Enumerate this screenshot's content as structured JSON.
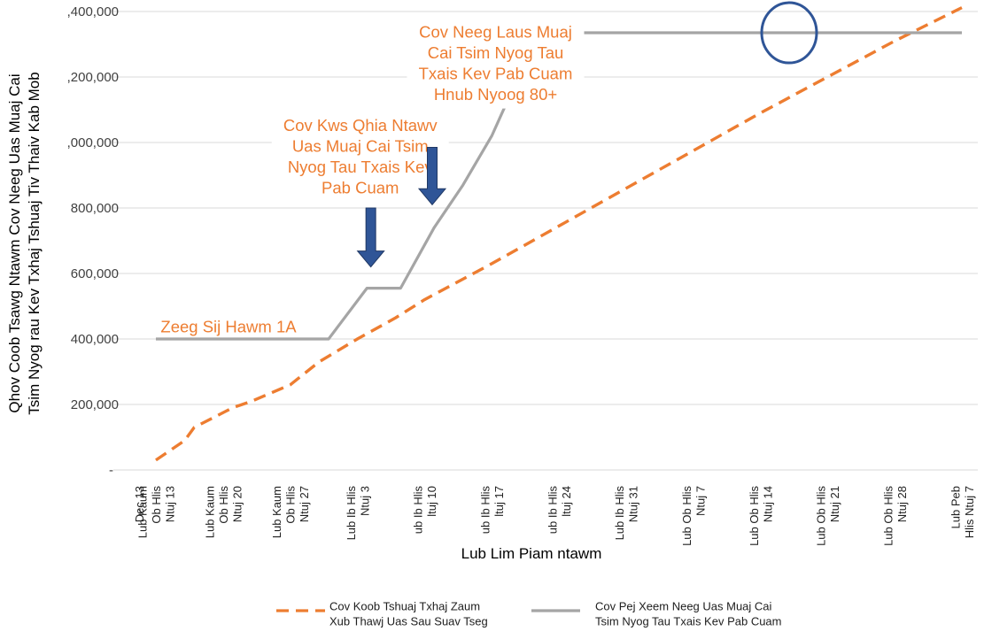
{
  "chart_data": {
    "type": "line",
    "title": "",
    "xlabel": "Lub Lim Piam ntawm",
    "ylabel": "Qhov Coob Tsawg Ntawm Cov Neeg Uas Muaj Cai Tsim Nyog rau Kev Txhaj Tshuaj Tiv Thaiv Kab Mob",
    "ylabel_lines": [
      "Qhov Coob Tsawg Ntawm Cov Neeg Uas Muaj Cai",
      "Tsim Nyog rau Kev Txhaj Tshuaj Tiv Thaiv Kab Mob"
    ],
    "ylim": [
      0,
      1400000
    ],
    "yticks": [
      {
        "value": 0,
        "label": "-"
      },
      {
        "value": 200000,
        "label": "200,000"
      },
      {
        "value": 400000,
        "label": "400,000"
      },
      {
        "value": 600000,
        "label": "600,000"
      },
      {
        "value": 800000,
        "label": "800,000"
      },
      {
        "value": 1000000,
        "label": ",000,000"
      },
      {
        "value": 1200000,
        "label": ",200,000"
      },
      {
        "value": 1400000,
        "label": ",400,000"
      }
    ],
    "xlim": [
      0,
      56
    ],
    "xticks": [
      {
        "day": 0,
        "label": "Lub Kaum Ob Hlis Ntuj 13",
        "lines": [
          "Lub Kaum",
          "Ob Hlis",
          "Ntuj 13"
        ],
        "clipped": "Dec 13"
      },
      {
        "day": 7,
        "label": "Lub Kaum Ob Hlis Ntuj 20",
        "lines": [
          "Lub Kaum",
          "Ob Hlis",
          "Ntuj 20"
        ]
      },
      {
        "day": 14,
        "label": "Lub Kaum Ob Hlis Ntuj 27",
        "lines": [
          "Lub Kaum",
          "Ob Hlis",
          "Ntuj 27"
        ]
      },
      {
        "day": 21,
        "label": "Lub Ib Hlis Ntuj 3",
        "lines": [
          "Lub Ib Hlis",
          "Ntuj 3"
        ]
      },
      {
        "day": 28,
        "label": "ub Ib Hlis ltuj 10",
        "lines": [
          "ub Ib Hlis",
          "ltuj 10"
        ]
      },
      {
        "day": 35,
        "label": "ub Ib Hlis ltuj 17",
        "lines": [
          "ub Ib Hlis",
          "ltuj 17"
        ]
      },
      {
        "day": 42,
        "label": "ub Ib Hlis ltuj 24",
        "lines": [
          "ub Ib Hlis",
          "ltuj 24"
        ]
      },
      {
        "day": 49,
        "label": "Lub Ib Hlis Ntuj 31",
        "lines": [
          "Lub Ib Hlis",
          "Ntuj 31"
        ]
      },
      {
        "day": 56,
        "label": "Lub Ob Hlis Ntuj 7",
        "lines": [
          "Lub Ob Hlis",
          "Ntuj 7"
        ]
      },
      {
        "day": 63,
        "label": "Lub Ob Hlis Ntuj 14",
        "lines": [
          "Lub Ob Hlis",
          "Ntuj 14"
        ]
      },
      {
        "day": 70,
        "label": "Lub Ob Hlis Ntuj 21",
        "lines": [
          "Lub Ob Hlis",
          "Ntuj 21"
        ]
      },
      {
        "day": 77,
        "label": "Lub Ob Hlis Ntuj 28",
        "lines": [
          "Lub Ob Hlis",
          "Ntuj 28"
        ]
      },
      {
        "day": 84,
        "label": "Lub Peb Hlis Ntuj 7",
        "lines": [
          "Lub Peb",
          "Hlis Ntuj 7"
        ]
      }
    ],
    "grid": true,
    "legend_position": "bottom",
    "series": [
      {
        "name": "Cov Koob Tshuaj Txhaj Zaum Xub Thawj Uas Sau Suav Tseg",
        "name_lines": [
          "Cov Koob Tshuaj Txhaj Zaum",
          "Xub Thawj Uas Sau Suav Tseg"
        ],
        "color": "#ED7D31",
        "style": "dashed",
        "points": [
          {
            "day": 0,
            "value": 30000
          },
          {
            "day": 3,
            "value": 90000
          },
          {
            "day": 4,
            "value": 130000
          },
          {
            "day": 8,
            "value": 190000
          },
          {
            "day": 10,
            "value": 210000
          },
          {
            "day": 14,
            "value": 260000
          },
          {
            "day": 17,
            "value": 330000
          },
          {
            "day": 21,
            "value": 400000
          },
          {
            "day": 25,
            "value": 465000
          },
          {
            "day": 28,
            "value": 520000
          },
          {
            "day": 35,
            "value": 630000
          },
          {
            "day": 42,
            "value": 745000
          },
          {
            "day": 49,
            "value": 860000
          },
          {
            "day": 56,
            "value": 975000
          },
          {
            "day": 63,
            "value": 1090000
          },
          {
            "day": 70,
            "value": 1200000
          },
          {
            "day": 77,
            "value": 1310000
          },
          {
            "day": 84,
            "value": 1412000
          }
        ]
      },
      {
        "name": "Cov Pej Xeem Neeg Uas Muaj Cai Tsim Nyog Tau Txais Kev Pab Cuam",
        "name_lines": [
          "Cov Pej Xeem Neeg Uas Muaj Cai",
          "Tsim Nyog Tau Txais Kev Pab Cuam"
        ],
        "color": "#A5A5A5",
        "style": "solid",
        "points": [
          {
            "day": 0,
            "value": 400000
          },
          {
            "day": 18,
            "value": 400000
          },
          {
            "day": 22,
            "value": 555000
          },
          {
            "day": 25.5,
            "value": 555000
          },
          {
            "day": 29,
            "value": 740000
          },
          {
            "day": 32,
            "value": 870000
          },
          {
            "day": 35,
            "value": 1020000
          },
          {
            "day": 37,
            "value": 1150000
          },
          {
            "day": 40,
            "value": 1335000
          },
          {
            "day": 84,
            "value": 1335000
          }
        ]
      }
    ],
    "annotations": [
      {
        "text": "Zeeg Sij Hawm 1A",
        "lines": [
          "Zeeg Sij Hawm 1A"
        ],
        "day": 0.5,
        "value": 420000,
        "color": "#ED7D31"
      },
      {
        "text": "Cov Kws Qhia Ntawv Uas Muaj Cai Tsim Nyog Tau Txais Kev Pab Cuam",
        "lines": [
          "Cov Kws Qhia Ntawv",
          "Uas Muaj Cai Tsim",
          "Nyog Tau Txais Kev",
          "Pab Cuam"
        ],
        "day": 21.3,
        "value": 1035000,
        "color": "#ED7D31"
      },
      {
        "text": "Cov Neeg Laus Muaj Cai Tsim Nyog Tau Txais Kev Pab Cuam Hnub Nyoog 80+",
        "lines": [
          "Cov Neeg Laus Muaj",
          "Cai Tsim Nyog Tau",
          "Txais Kev Pab Cuam",
          "Hnub Nyoog 80+"
        ],
        "day": 35.4,
        "value": 1320000,
        "color": "#ED7D31"
      }
    ],
    "arrows": [
      {
        "day": 22.4,
        "from_value": 800000,
        "to_value": 620000,
        "color": "#2F5597"
      },
      {
        "day": 28.8,
        "from_value": 985000,
        "to_value": 810000,
        "color": "#2F5597"
      }
    ],
    "highlight_circle": {
      "day": 66,
      "value": 1335000,
      "color": "#2F5597"
    }
  }
}
